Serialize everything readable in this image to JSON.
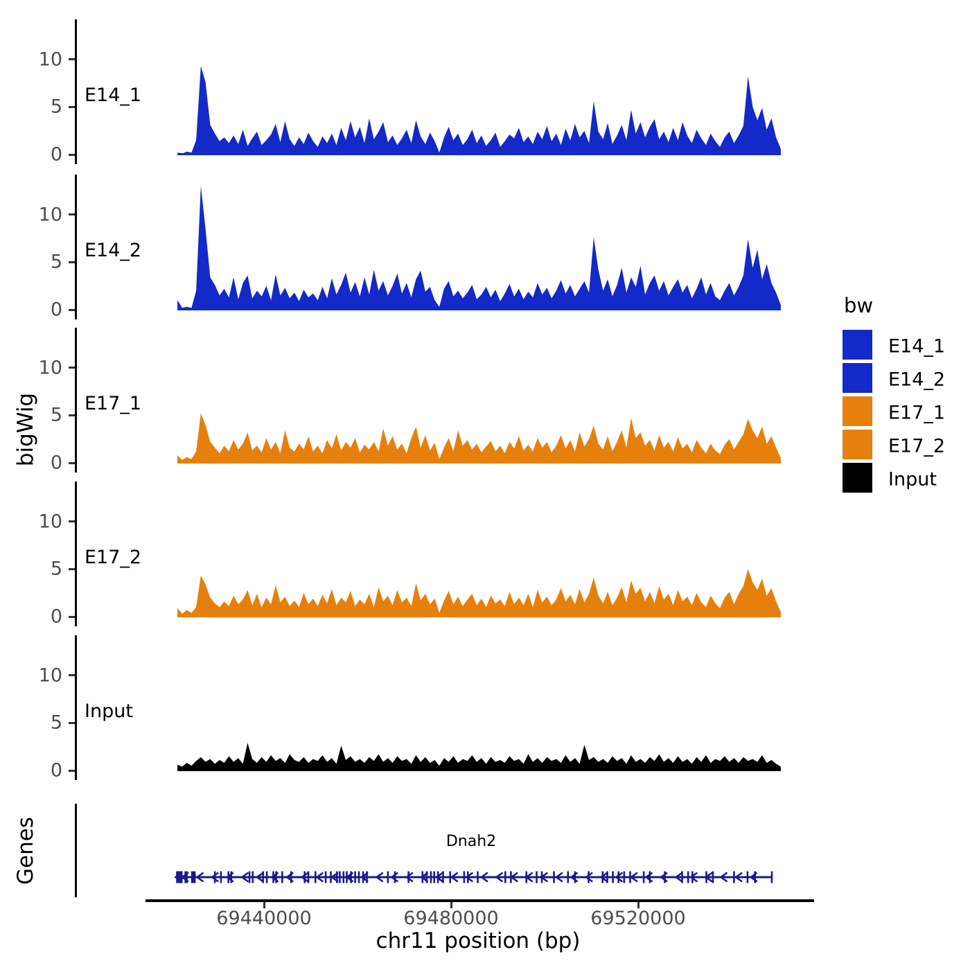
{
  "figure": {
    "left_axis_group_label": "bigWig",
    "genes_group_label": "Genes",
    "x_axis_title": "chr11 position (bp)"
  },
  "legend": {
    "title": "bw",
    "entries": [
      {
        "label": "E14_1",
        "color": "#1329C8"
      },
      {
        "label": "E14_2",
        "color": "#1329C8"
      },
      {
        "label": "E17_1",
        "color": "#E6800D"
      },
      {
        "label": "E17_2",
        "color": "#E6800D"
      },
      {
        "label": "Input",
        "color": "#000000"
      }
    ]
  },
  "chart_data": {
    "type": "area",
    "title": "",
    "xlabel": "chr11 position (bp)",
    "ylabel": "bigWig",
    "x_domain_bp": [
      69399850,
      69557630
    ],
    "xticks": [
      {
        "bp": 69440000,
        "label": "69440000"
      },
      {
        "bp": 69480000,
        "label": "69480000"
      },
      {
        "bp": 69520000,
        "label": "69520000"
      }
    ],
    "ylim": [
      0,
      14
    ],
    "yticks": [
      "0",
      "5",
      "10"
    ],
    "sample_start_bp": 69421500,
    "sample_step_bp": 1000,
    "series": [
      {
        "name": "E14_1",
        "color": "#1329C8",
        "values": [
          0.2,
          0.1,
          0.3,
          0.2,
          1.5,
          9.3,
          7.6,
          3.1,
          2.2,
          1.4,
          1.8,
          1.2,
          2.0,
          1.1,
          2.6,
          0.9,
          1.7,
          2.4,
          1.0,
          1.5,
          2.1,
          3.2,
          1.3,
          3.5,
          1.6,
          0.9,
          1.8,
          1.1,
          2.3,
          1.4,
          0.8,
          1.9,
          1.2,
          2.2,
          1.0,
          2.8,
          1.5,
          3.5,
          1.8,
          2.9,
          1.2,
          3.8,
          1.6,
          2.4,
          3.4,
          1.3,
          2.0,
          1.0,
          1.7,
          2.6,
          1.2,
          3.6,
          1.9,
          1.1,
          2.3,
          1.4,
          0.2,
          1.8,
          2.9,
          1.5,
          2.2,
          1.0,
          1.6,
          2.6,
          1.2,
          2.0,
          0.9,
          1.5,
          2.3,
          0.8,
          1.4,
          2.1,
          1.7,
          2.8,
          1.3,
          1.9,
          1.1,
          2.4,
          1.6,
          3.0,
          1.4,
          2.2,
          1.0,
          2.7,
          1.5,
          3.2,
          1.8,
          2.5,
          1.2,
          5.6,
          2.4,
          1.6,
          3.3,
          1.1,
          2.0,
          3.1,
          1.5,
          4.7,
          2.2,
          3.4,
          1.8,
          2.9,
          3.7,
          1.6,
          2.4,
          1.3,
          2.8,
          1.5,
          3.4,
          2.0,
          1.2,
          2.6,
          1.7,
          1.0,
          2.2,
          1.4,
          0.8,
          1.8,
          2.4,
          1.2,
          2.0,
          3.0,
          8.2,
          5.0,
          3.6,
          4.9,
          2.6,
          3.8,
          1.8,
          0.6
        ]
      },
      {
        "name": "E14_2",
        "color": "#1329C8",
        "values": [
          1.0,
          0.2,
          0.3,
          0.2,
          2.0,
          13.0,
          8.5,
          3.4,
          2.6,
          1.5,
          2.2,
          1.3,
          3.4,
          1.1,
          2.8,
          3.6,
          1.2,
          2.0,
          1.4,
          2.5,
          1.0,
          3.7,
          1.5,
          2.3,
          1.2,
          1.8,
          0.9,
          2.1,
          1.3,
          1.7,
          1.0,
          2.4,
          1.2,
          3.3,
          1.6,
          2.6,
          3.9,
          1.8,
          2.9,
          1.4,
          3.4,
          1.6,
          4.2,
          2.0,
          3.0,
          1.5,
          2.5,
          3.8,
          1.7,
          2.8,
          1.3,
          3.2,
          4.1,
          1.9,
          2.4,
          1.0,
          0.3,
          2.2,
          3.0,
          1.4,
          2.0,
          1.2,
          1.8,
          2.6,
          1.1,
          1.6,
          2.4,
          1.3,
          2.1,
          0.9,
          1.7,
          2.7,
          1.4,
          2.2,
          1.1,
          1.9,
          1.3,
          2.8,
          1.6,
          2.3,
          1.2,
          2.0,
          3.1,
          1.7,
          2.6,
          1.4,
          2.2,
          3.0,
          1.8,
          7.6,
          4.2,
          2.0,
          3.2,
          1.4,
          2.6,
          4.4,
          1.8,
          3.4,
          2.4,
          4.6,
          1.6,
          2.8,
          3.6,
          2.0,
          3.0,
          1.5,
          2.4,
          3.2,
          1.8,
          2.6,
          1.2,
          2.2,
          3.4,
          1.6,
          2.8,
          1.4,
          1.0,
          2.0,
          2.8,
          1.5,
          2.4,
          3.6,
          7.4,
          4.4,
          6.3,
          3.2,
          4.8,
          2.8,
          1.8,
          0.5
        ]
      },
      {
        "name": "E17_1",
        "color": "#E6800D",
        "values": [
          0.8,
          0.3,
          0.6,
          0.4,
          1.2,
          5.2,
          4.0,
          2.2,
          1.6,
          1.0,
          1.8,
          1.2,
          2.4,
          1.4,
          2.0,
          3.2,
          1.3,
          1.8,
          1.1,
          2.6,
          1.4,
          2.2,
          1.0,
          3.4,
          1.6,
          1.2,
          2.0,
          1.4,
          2.8,
          1.2,
          1.8,
          1.0,
          2.4,
          1.5,
          3.0,
          1.3,
          2.2,
          1.6,
          2.6,
          1.1,
          1.9,
          1.4,
          2.2,
          1.2,
          3.6,
          1.8,
          2.8,
          1.4,
          2.0,
          1.0,
          2.6,
          3.8,
          1.6,
          2.9,
          1.3,
          2.1,
          0.4,
          1.6,
          2.6,
          1.2,
          3.4,
          1.8,
          2.4,
          1.4,
          2.0,
          1.1,
          1.7,
          2.3,
          1.2,
          1.8,
          1.0,
          2.2,
          1.5,
          2.8,
          1.3,
          1.9,
          1.2,
          2.6,
          1.6,
          2.2,
          1.1,
          1.8,
          2.9,
          1.5,
          2.4,
          1.2,
          3.2,
          1.7,
          2.5,
          3.9,
          2.0,
          1.4,
          2.8,
          1.2,
          2.2,
          3.4,
          1.6,
          4.7,
          2.6,
          3.2,
          1.8,
          2.4,
          1.3,
          2.9,
          1.6,
          2.2,
          1.2,
          2.7,
          1.5,
          2.0,
          1.1,
          2.4,
          1.6,
          1.0,
          2.0,
          1.3,
          0.9,
          1.9,
          2.5,
          1.4,
          2.2,
          3.0,
          4.6,
          3.4,
          2.6,
          3.8,
          2.0,
          2.8,
          1.6,
          0.5
        ]
      },
      {
        "name": "E17_2",
        "color": "#E6800D",
        "values": [
          0.9,
          0.3,
          0.7,
          0.4,
          1.0,
          4.3,
          3.4,
          2.0,
          1.4,
          1.0,
          1.6,
          1.1,
          2.2,
          1.3,
          1.8,
          2.8,
          1.2,
          2.4,
          1.0,
          2.0,
          1.3,
          3.3,
          1.5,
          2.1,
          1.1,
          1.7,
          1.0,
          2.5,
          1.3,
          1.9,
          1.1,
          2.3,
          1.4,
          2.9,
          1.2,
          2.0,
          1.5,
          2.7,
          1.1,
          1.8,
          1.3,
          2.4,
          1.0,
          3.1,
          1.6,
          2.2,
          1.2,
          2.8,
          1.5,
          2.0,
          1.1,
          3.5,
          1.7,
          2.4,
          1.3,
          1.9,
          0.4,
          1.7,
          2.7,
          1.3,
          2.1,
          1.1,
          1.8,
          2.4,
          1.2,
          1.9,
          1.0,
          2.2,
          1.4,
          1.8,
          1.1,
          2.6,
          1.3,
          2.0,
          1.2,
          2.4,
          1.0,
          2.8,
          1.5,
          2.1,
          1.2,
          1.8,
          3.0,
          1.6,
          2.3,
          1.3,
          2.9,
          1.5,
          2.4,
          4.1,
          2.2,
          1.4,
          2.6,
          1.2,
          2.0,
          3.1,
          1.5,
          3.8,
          2.4,
          3.0,
          1.6,
          2.6,
          1.4,
          3.2,
          1.8,
          2.4,
          1.2,
          2.8,
          1.6,
          2.1,
          1.2,
          2.5,
          1.5,
          1.0,
          2.2,
          1.4,
          0.9,
          2.0,
          2.6,
          1.3,
          2.4,
          3.2,
          5.0,
          3.6,
          2.8,
          4.0,
          2.2,
          3.0,
          1.6,
          0.5
        ]
      },
      {
        "name": "Input",
        "color": "#000000",
        "values": [
          0.6,
          0.4,
          0.8,
          0.5,
          1.0,
          1.4,
          0.9,
          1.2,
          0.7,
          1.1,
          0.8,
          1.5,
          0.9,
          1.3,
          0.7,
          2.9,
          1.2,
          0.8,
          1.4,
          0.9,
          1.6,
          1.0,
          1.3,
          0.8,
          1.7,
          1.1,
          0.9,
          1.4,
          0.8,
          1.2,
          1.0,
          1.6,
          0.9,
          1.3,
          0.7,
          2.6,
          1.1,
          1.5,
          0.9,
          1.2,
          0.8,
          1.4,
          1.0,
          1.7,
          0.9,
          1.3,
          0.8,
          1.5,
          1.0,
          1.2,
          0.7,
          1.6,
          0.9,
          1.4,
          0.8,
          1.1,
          0.5,
          1.3,
          0.9,
          1.5,
          0.8,
          1.2,
          1.0,
          1.6,
          0.9,
          1.3,
          0.7,
          1.4,
          0.9,
          1.1,
          0.8,
          1.5,
          1.0,
          1.2,
          0.7,
          1.7,
          0.9,
          1.3,
          0.8,
          1.4,
          1.0,
          1.2,
          0.8,
          1.6,
          0.9,
          1.3,
          0.7,
          2.7,
          1.1,
          1.4,
          0.9,
          1.2,
          0.8,
          1.5,
          1.0,
          1.3,
          0.7,
          1.6,
          0.9,
          1.2,
          0.8,
          1.4,
          1.0,
          1.7,
          0.9,
          1.3,
          0.8,
          1.5,
          0.9,
          1.2,
          0.7,
          1.4,
          0.9,
          1.6,
          0.8,
          1.2,
          1.0,
          1.5,
          0.9,
          1.3,
          0.8,
          1.4,
          1.0,
          1.2,
          0.9,
          1.6,
          0.8,
          1.1,
          0.7,
          0.4
        ]
      }
    ],
    "genes_track": {
      "panel_label": "Genes",
      "gene": {
        "name": "Dnah2",
        "chrom": "chr11",
        "start_bp": 69421300,
        "end_bp": 69548700,
        "strand": "-",
        "color": "#1A1A8C",
        "exons_bp": [
          69421400,
          69421600,
          69421800,
          69422100,
          69422400,
          69423200,
          69423500,
          69424600,
          69424900,
          69425200,
          69429500,
          69430800,
          69432400,
          69433000,
          69436900,
          69437600,
          69439800,
          69440600,
          69442000,
          69442600,
          69443900,
          69445800,
          69448700,
          69449500,
          69451000,
          69453200,
          69454300,
          69455600,
          69456200,
          69457000,
          69457700,
          69458600,
          69459500,
          69460300,
          69461200,
          69462000,
          69466500,
          69468000,
          69470900,
          69473900,
          69474800,
          69475700,
          69476400,
          69477200,
          69478300,
          69479800,
          69482800,
          69483600,
          69485700,
          69491600,
          69492800,
          69496100,
          69498300,
          69499400,
          69502000,
          69505000,
          69506500,
          69509400,
          69512400,
          69513400,
          69514600,
          69515800,
          69517000,
          69518300,
          69521200,
          69522500,
          69525700,
          69529400,
          69530700,
          69531600,
          69534600,
          69536000,
          69540500,
          69543400,
          69545000,
          69548600
        ]
      }
    }
  }
}
